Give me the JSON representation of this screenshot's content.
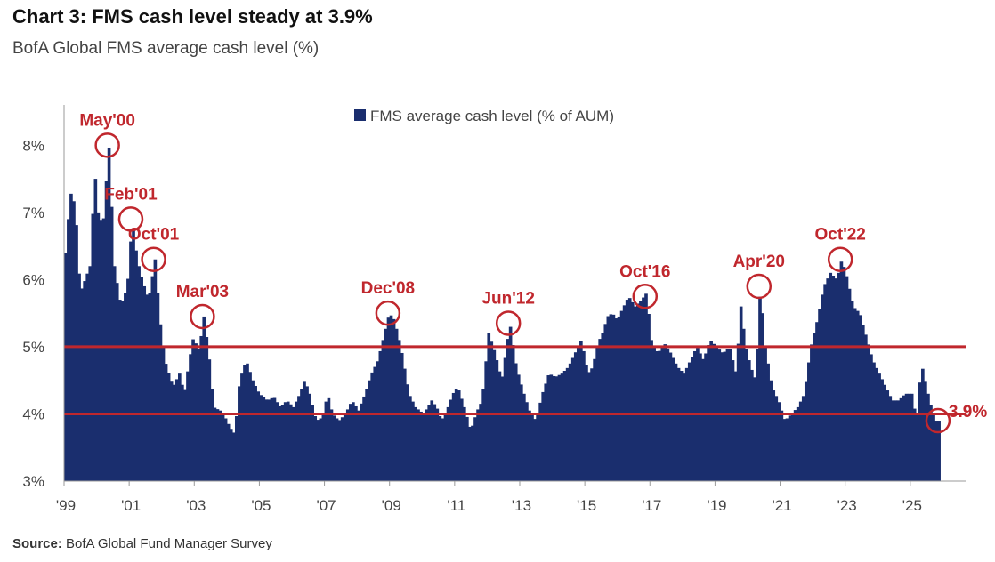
{
  "chart_data": {
    "type": "bar",
    "title": "Chart 3: FMS cash level steady at 3.9%",
    "subtitle": "BofA Global FMS average cash level (%)",
    "source_label": "Source:",
    "source_text": "BofA Global Fund Manager Survey",
    "series_name": "FMS average cash level (% of AUM)",
    "bar_color": "#1a2e6e",
    "line_color": "#c0272d",
    "annotation_color": "#c0272d",
    "ylim": [
      3,
      8.6
    ],
    "yticks": [
      3,
      4,
      5,
      6,
      7,
      8
    ],
    "ytick_labels": [
      "3%",
      "4%",
      "5%",
      "6%",
      "7%",
      "8%"
    ],
    "xlim": [
      1999.0,
      2026.7
    ],
    "xticks": [
      1999,
      2001,
      2003,
      2005,
      2007,
      2009,
      2011,
      2013,
      2015,
      2017,
      2019,
      2021,
      2023,
      2025
    ],
    "xtick_labels": [
      "'99",
      "'01",
      "'03",
      "'05",
      "'07",
      "'09",
      "'11",
      "'13",
      "'15",
      "'17",
      "'19",
      "'21",
      "'23",
      "'25"
    ],
    "reference_lines": [
      5.0,
      4.0
    ],
    "anchors": [
      [
        1999.0,
        6.4
      ],
      [
        1999.15,
        7.3
      ],
      [
        1999.3,
        7.1
      ],
      [
        1999.45,
        5.8
      ],
      [
        1999.6,
        6.0
      ],
      [
        1999.75,
        6.2
      ],
      [
        1999.9,
        7.6
      ],
      [
        2000.0,
        7.0
      ],
      [
        2000.15,
        6.8
      ],
      [
        2000.33,
        8.0
      ],
      [
        2000.5,
        6.2
      ],
      [
        2000.7,
        5.6
      ],
      [
        2000.9,
        5.9
      ],
      [
        2001.05,
        6.9
      ],
      [
        2001.2,
        6.3
      ],
      [
        2001.35,
        6.0
      ],
      [
        2001.55,
        5.7
      ],
      [
        2001.75,
        6.3
      ],
      [
        2001.9,
        5.4
      ],
      [
        2002.05,
        4.8
      ],
      [
        2002.3,
        4.4
      ],
      [
        2002.5,
        4.6
      ],
      [
        2002.65,
        4.3
      ],
      [
        2002.8,
        4.8
      ],
      [
        2002.95,
        5.2
      ],
      [
        2003.05,
        4.9
      ],
      [
        2003.15,
        5.1
      ],
      [
        2003.25,
        5.45
      ],
      [
        2003.4,
        4.9
      ],
      [
        2003.55,
        4.1
      ],
      [
        2003.75,
        4.05
      ],
      [
        2003.9,
        3.95
      ],
      [
        2004.05,
        3.8
      ],
      [
        2004.2,
        3.7
      ],
      [
        2004.35,
        4.5
      ],
      [
        2004.55,
        4.8
      ],
      [
        2004.75,
        4.5
      ],
      [
        2004.95,
        4.3
      ],
      [
        2005.2,
        4.2
      ],
      [
        2005.4,
        4.25
      ],
      [
        2005.6,
        4.1
      ],
      [
        2005.8,
        4.2
      ],
      [
        2006.0,
        4.1
      ],
      [
        2006.2,
        4.3
      ],
      [
        2006.35,
        4.5
      ],
      [
        2006.5,
        4.3
      ],
      [
        2006.7,
        3.9
      ],
      [
        2006.9,
        3.95
      ],
      [
        2007.05,
        4.3
      ],
      [
        2007.2,
        4.0
      ],
      [
        2007.4,
        3.9
      ],
      [
        2007.6,
        4.0
      ],
      [
        2007.8,
        4.2
      ],
      [
        2008.0,
        4.05
      ],
      [
        2008.2,
        4.3
      ],
      [
        2008.4,
        4.6
      ],
      [
        2008.6,
        4.8
      ],
      [
        2008.8,
        5.2
      ],
      [
        2008.95,
        5.5
      ],
      [
        2009.1,
        5.4
      ],
      [
        2009.3,
        5.0
      ],
      [
        2009.55,
        4.3
      ],
      [
        2009.75,
        4.1
      ],
      [
        2010.0,
        4.0
      ],
      [
        2010.25,
        4.2
      ],
      [
        2010.4,
        4.1
      ],
      [
        2010.55,
        3.9
      ],
      [
        2010.75,
        4.1
      ],
      [
        2010.9,
        4.3
      ],
      [
        2011.05,
        4.4
      ],
      [
        2011.25,
        4.1
      ],
      [
        2011.45,
        3.75
      ],
      [
        2011.65,
        4.05
      ],
      [
        2011.8,
        4.2
      ],
      [
        2012.0,
        5.2
      ],
      [
        2012.2,
        4.9
      ],
      [
        2012.4,
        4.5
      ],
      [
        2012.55,
        5.0
      ],
      [
        2012.65,
        5.35
      ],
      [
        2012.85,
        4.7
      ],
      [
        2013.05,
        4.35
      ],
      [
        2013.25,
        4.05
      ],
      [
        2013.45,
        3.9
      ],
      [
        2013.65,
        4.3
      ],
      [
        2013.85,
        4.6
      ],
      [
        2014.05,
        4.55
      ],
      [
        2014.25,
        4.6
      ],
      [
        2014.45,
        4.7
      ],
      [
        2014.65,
        4.9
      ],
      [
        2014.85,
        5.1
      ],
      [
        2015.05,
        4.6
      ],
      [
        2015.2,
        4.7
      ],
      [
        2015.35,
        5.05
      ],
      [
        2015.5,
        5.2
      ],
      [
        2015.65,
        5.45
      ],
      [
        2015.8,
        5.5
      ],
      [
        2015.95,
        5.4
      ],
      [
        2016.1,
        5.55
      ],
      [
        2016.3,
        5.75
      ],
      [
        2016.5,
        5.6
      ],
      [
        2016.7,
        5.7
      ],
      [
        2016.85,
        5.8
      ],
      [
        2017.0,
        5.1
      ],
      [
        2017.2,
        4.9
      ],
      [
        2017.4,
        5.05
      ],
      [
        2017.6,
        4.9
      ],
      [
        2017.8,
        4.7
      ],
      [
        2018.0,
        4.6
      ],
      [
        2018.2,
        4.8
      ],
      [
        2018.4,
        5.0
      ],
      [
        2018.6,
        4.8
      ],
      [
        2018.8,
        5.1
      ],
      [
        2019.0,
        5.0
      ],
      [
        2019.2,
        4.9
      ],
      [
        2019.4,
        5.0
      ],
      [
        2019.6,
        4.6
      ],
      [
        2019.75,
        5.6
      ],
      [
        2019.9,
        5.0
      ],
      [
        2020.05,
        4.7
      ],
      [
        2020.2,
        4.5
      ],
      [
        2020.35,
        5.9
      ],
      [
        2020.5,
        5.0
      ],
      [
        2020.7,
        4.4
      ],
      [
        2020.9,
        4.2
      ],
      [
        2021.1,
        3.9
      ],
      [
        2021.3,
        4.0
      ],
      [
        2021.5,
        4.1
      ],
      [
        2021.7,
        4.3
      ],
      [
        2021.9,
        5.0
      ],
      [
        2022.1,
        5.4
      ],
      [
        2022.3,
        5.9
      ],
      [
        2022.5,
        6.1
      ],
      [
        2022.7,
        6.0
      ],
      [
        2022.85,
        6.3
      ],
      [
        2023.0,
        6.05
      ],
      [
        2023.2,
        5.6
      ],
      [
        2023.4,
        5.5
      ],
      [
        2023.6,
        5.15
      ],
      [
        2023.8,
        4.8
      ],
      [
        2024.0,
        4.6
      ],
      [
        2024.2,
        4.4
      ],
      [
        2024.4,
        4.2
      ],
      [
        2024.6,
        4.2
      ],
      [
        2024.8,
        4.3
      ],
      [
        2025.0,
        4.3
      ],
      [
        2025.15,
        3.9
      ],
      [
        2025.3,
        4.75
      ],
      [
        2025.45,
        4.4
      ],
      [
        2025.6,
        4.1
      ],
      [
        2025.75,
        3.9
      ],
      [
        2025.85,
        3.9
      ]
    ],
    "annotations": [
      {
        "label": "May'00",
        "x": 2000.33,
        "y": 8.0,
        "pos": "above"
      },
      {
        "label": "Feb'01",
        "x": 2001.05,
        "y": 6.9,
        "pos": "above"
      },
      {
        "label": "Oct'01",
        "x": 2001.75,
        "y": 6.3,
        "pos": "above"
      },
      {
        "label": "Mar'03",
        "x": 2003.25,
        "y": 5.45,
        "pos": "above"
      },
      {
        "label": "Dec'08",
        "x": 2008.95,
        "y": 5.5,
        "pos": "above"
      },
      {
        "label": "Jun'12",
        "x": 2012.65,
        "y": 5.35,
        "pos": "above"
      },
      {
        "label": "Oct'16",
        "x": 2016.85,
        "y": 5.75,
        "pos": "above"
      },
      {
        "label": "Apr'20",
        "x": 2020.35,
        "y": 5.9,
        "pos": "above"
      },
      {
        "label": "Oct'22",
        "x": 2022.85,
        "y": 6.3,
        "pos": "above"
      },
      {
        "label": "3.9%",
        "x": 2025.85,
        "y": 3.9,
        "pos": "right"
      }
    ]
  }
}
